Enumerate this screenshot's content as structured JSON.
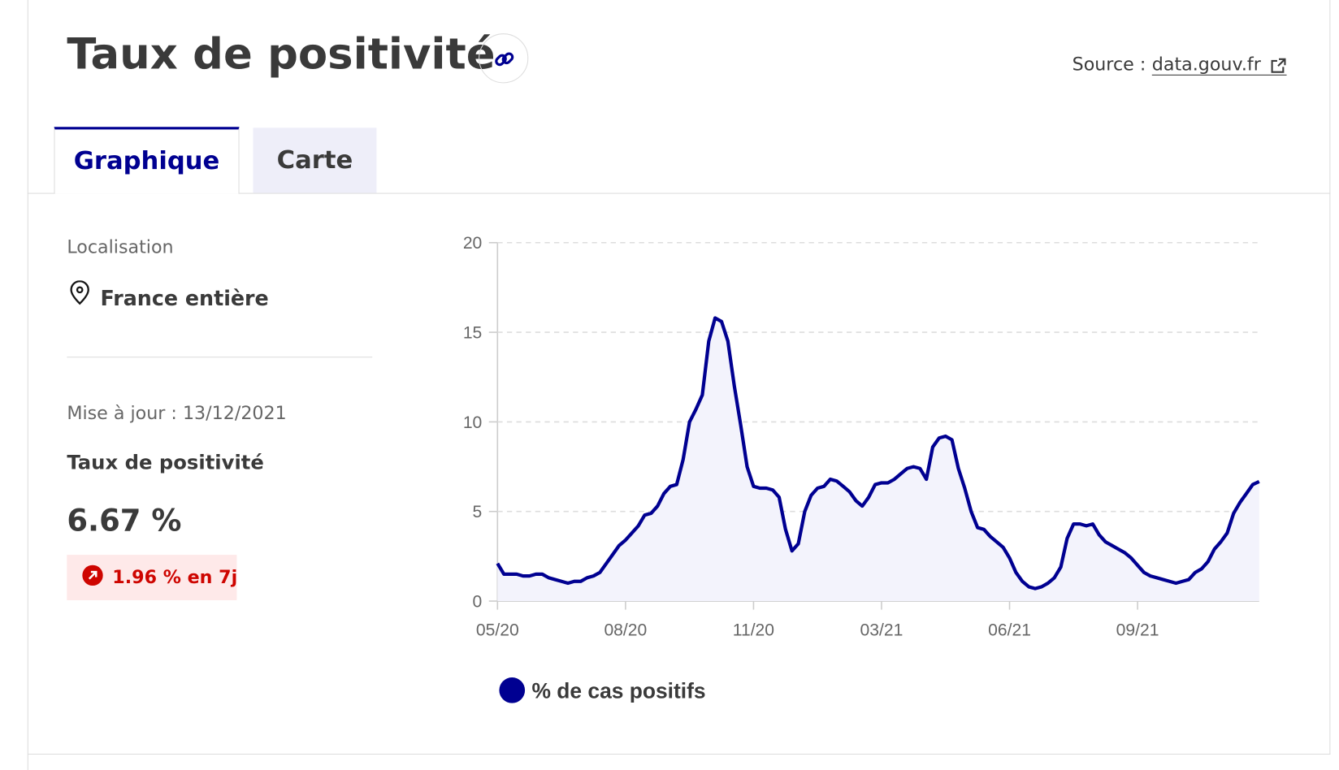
{
  "header": {
    "title": "Taux de positivité",
    "source_label": "Source :",
    "source_link": "data.gouv.fr"
  },
  "tabs": [
    "Graphique",
    "Carte"
  ],
  "sidebar": {
    "location_label": "Localisation",
    "location": "France entière",
    "updated": "Mise à jour : 13/12/2021",
    "indicator": "Taux de positivité",
    "value": "6.67 %",
    "change": "1.96 % en 7j"
  },
  "chart_data": {
    "type": "line",
    "categories": [
      "05/20",
      null,
      null,
      null,
      null,
      null,
      null,
      null,
      null,
      null,
      null,
      null,
      null,
      null,
      null,
      null,
      null,
      null,
      null,
      null,
      "08/20",
      null,
      null,
      null,
      null,
      null,
      null,
      null,
      null,
      null,
      null,
      null,
      null,
      null,
      null,
      null,
      null,
      null,
      null,
      null,
      "11/20",
      null,
      null,
      null,
      null,
      null,
      null,
      null,
      null,
      null,
      null,
      null,
      null,
      null,
      null,
      null,
      null,
      null,
      null,
      null,
      "03/21",
      null,
      null,
      null,
      null,
      null,
      null,
      null,
      null,
      null,
      null,
      null,
      null,
      null,
      null,
      null,
      null,
      null,
      null,
      null,
      "06/21",
      null,
      null,
      null,
      null,
      null,
      null,
      null,
      null,
      null,
      null,
      null,
      null,
      null,
      null,
      null,
      null,
      null,
      null,
      null,
      "09/21",
      null,
      null,
      null,
      null,
      null,
      null,
      null,
      null,
      null,
      null,
      null,
      null,
      null,
      null,
      null,
      null,
      null,
      null,
      null
    ],
    "series": [
      {
        "name": "% de cas positifs",
        "color": "#000091",
        "fill": "#f3f3fc",
        "values": [
          2.1,
          1.5,
          1.5,
          1.5,
          1.4,
          1.4,
          1.5,
          1.5,
          1.3,
          1.2,
          1.1,
          1.0,
          1.1,
          1.1,
          1.3,
          1.4,
          1.6,
          2.1,
          2.6,
          3.1,
          3.4,
          3.8,
          4.2,
          4.8,
          4.9,
          5.3,
          6.0,
          6.4,
          6.5,
          7.9,
          10.0,
          10.7,
          11.5,
          14.5,
          15.8,
          15.6,
          14.5,
          12.0,
          9.8,
          7.5,
          6.4,
          6.3,
          6.3,
          6.2,
          5.8,
          4.0,
          2.8,
          3.2,
          5.0,
          5.9,
          6.3,
          6.4,
          6.8,
          6.7,
          6.4,
          6.1,
          5.6,
          5.3,
          5.8,
          6.5,
          6.6,
          6.6,
          6.8,
          7.1,
          7.4,
          7.5,
          7.4,
          6.8,
          8.6,
          9.1,
          9.2,
          9.0,
          7.4,
          6.3,
          5.0,
          4.1,
          4.0,
          3.6,
          3.3,
          3.0,
          2.4,
          1.6,
          1.1,
          0.8,
          0.7,
          0.8,
          1.0,
          1.3,
          1.9,
          3.5,
          4.3,
          4.3,
          4.2,
          4.3,
          3.7,
          3.3,
          3.1,
          2.9,
          2.7,
          2.4,
          2.0,
          1.6,
          1.4,
          1.3,
          1.2,
          1.1,
          1.0,
          1.1,
          1.2,
          1.6,
          1.8,
          2.2,
          2.9,
          3.3,
          3.8,
          4.9,
          5.5,
          6.0,
          6.5,
          6.67
        ]
      }
    ],
    "ylim": [
      0,
      20
    ],
    "yticks": [
      0,
      5,
      10,
      15,
      20
    ],
    "grid": true
  }
}
